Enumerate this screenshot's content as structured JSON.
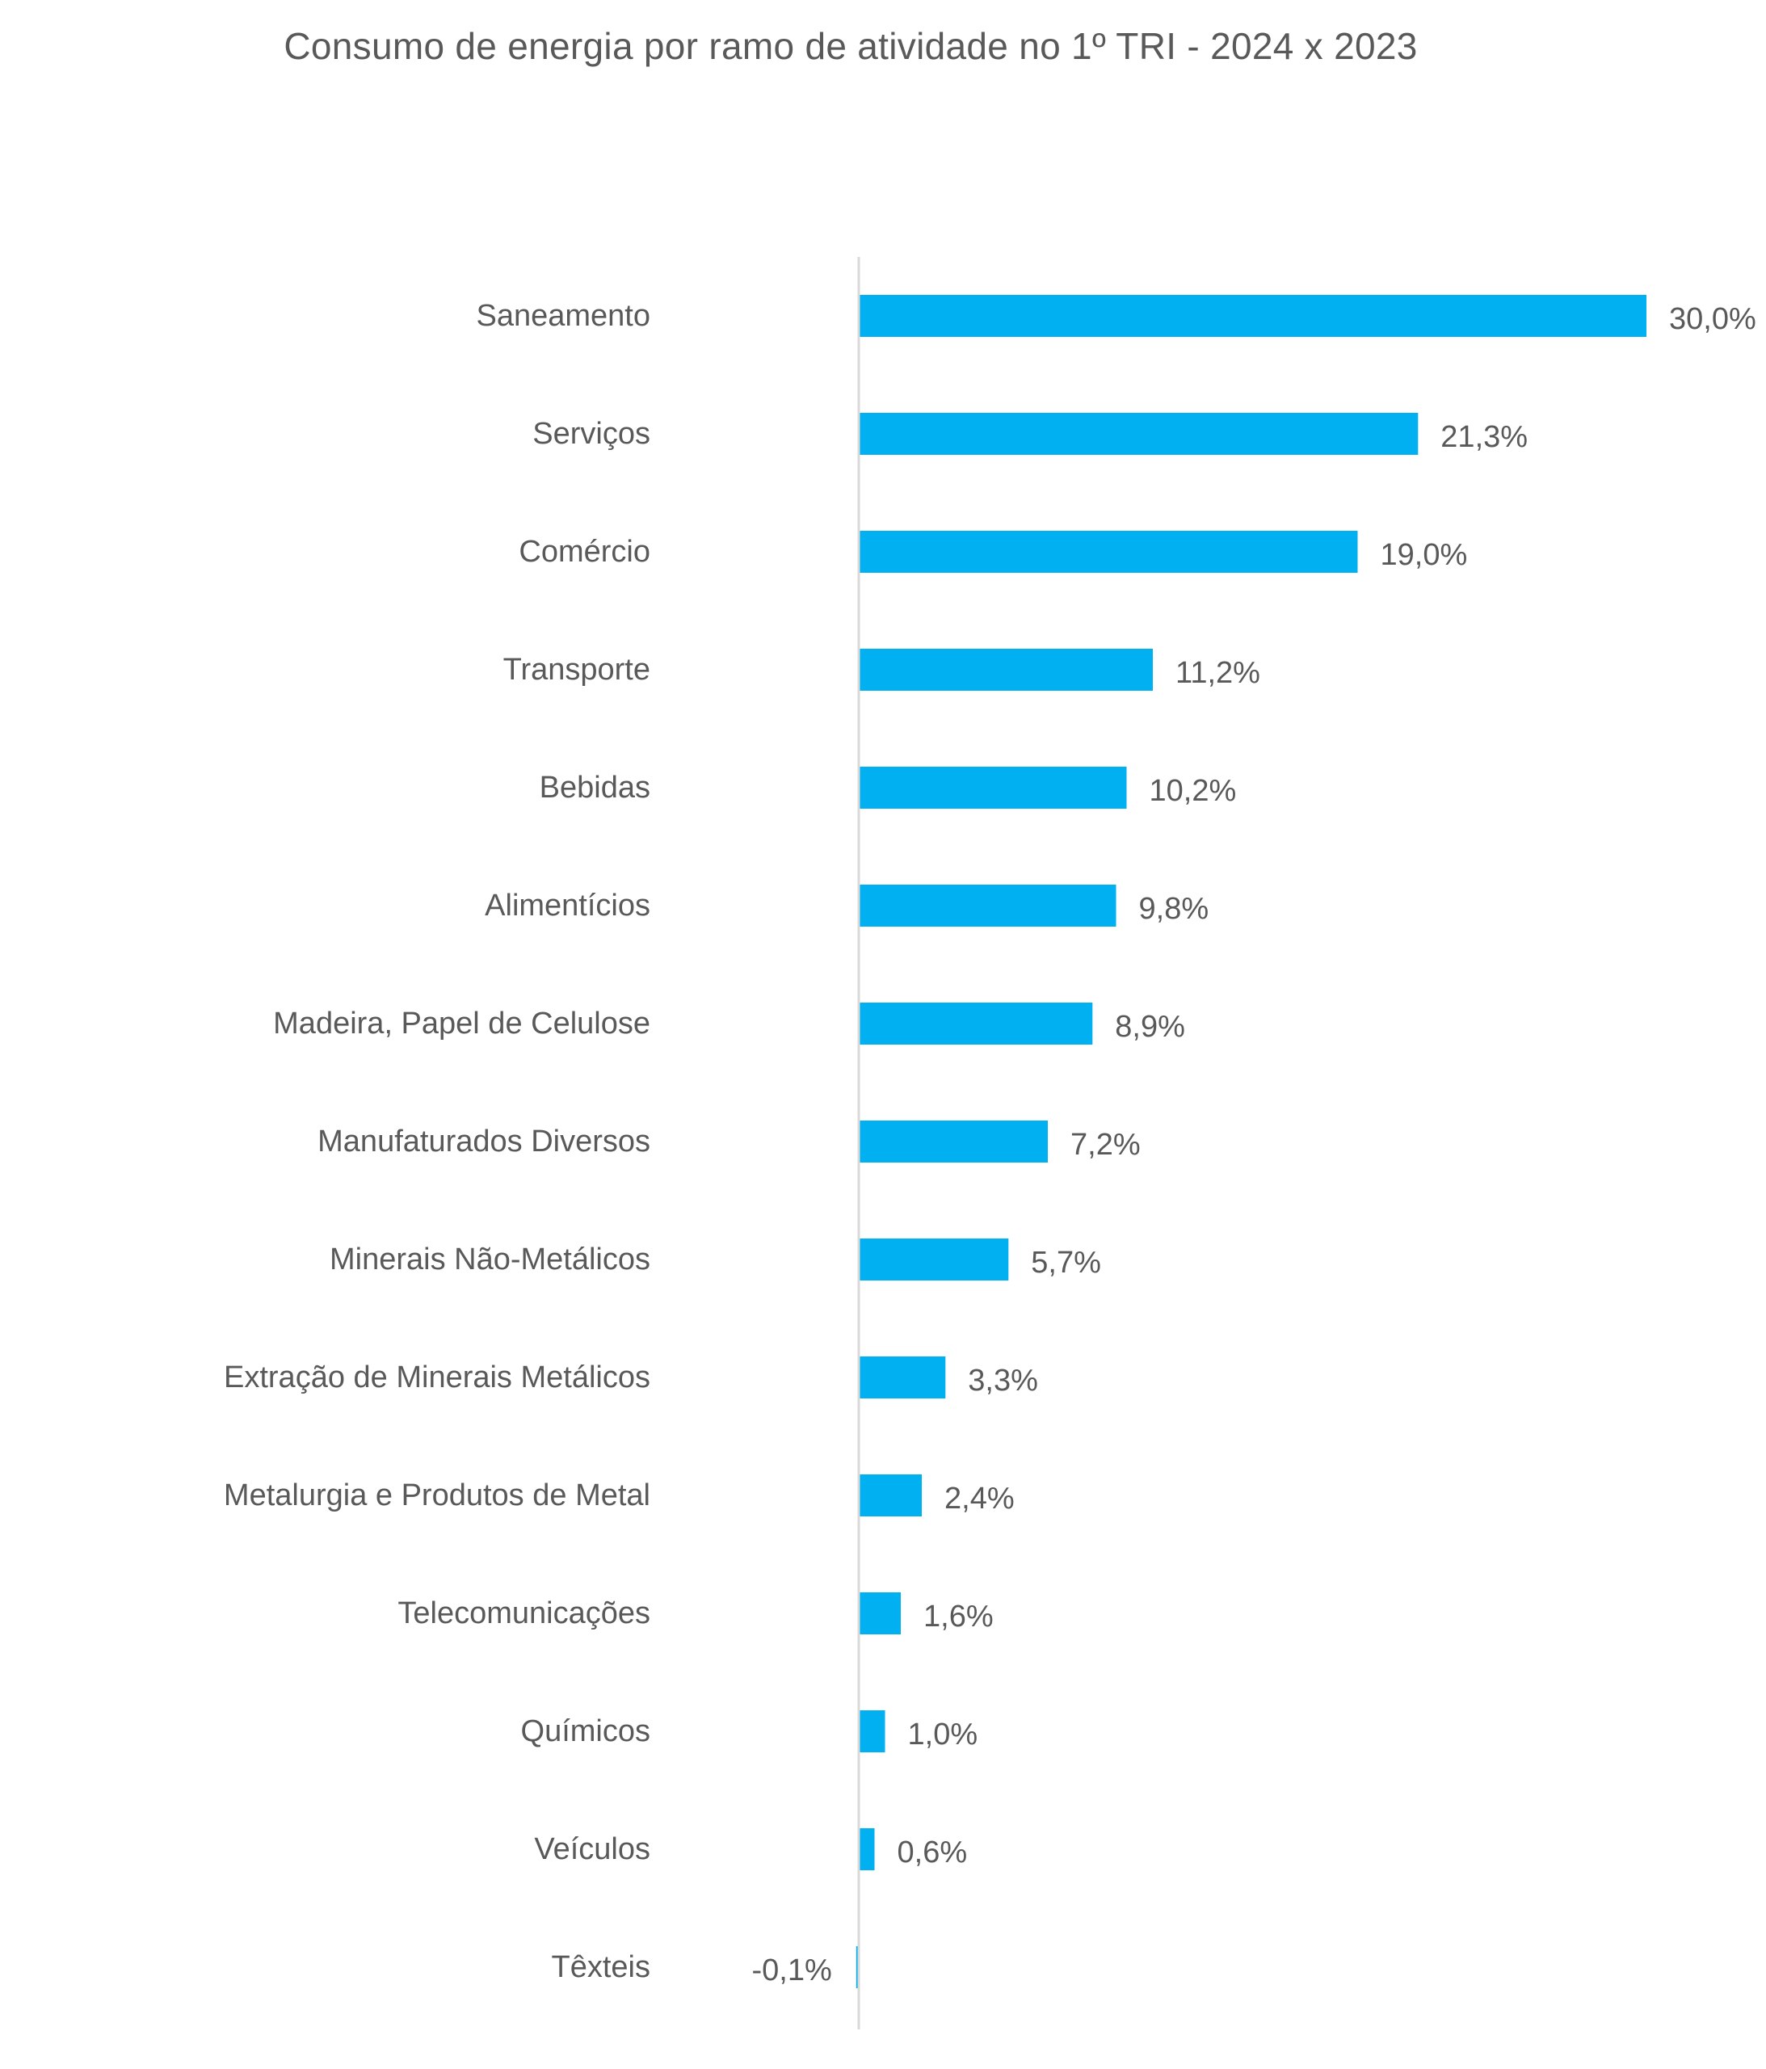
{
  "chart_data": {
    "type": "bar",
    "orientation": "horizontal",
    "title": "Consumo de energia por ramo de atividade no 1º TRI - 2024 x 2023",
    "categories": [
      "Saneamento",
      "Serviços",
      "Comércio",
      "Transporte",
      "Bebidas",
      "Alimentícios",
      "Madeira, Papel de Celulose",
      "Manufaturados Diversos",
      "Minerais Não-Metálicos",
      "Extração de Minerais Metálicos",
      "Metalurgia e Produtos de Metal",
      "Telecomunicações",
      "Químicos",
      "Veículos",
      "Têxteis"
    ],
    "values": [
      30.0,
      21.3,
      19.0,
      11.2,
      10.2,
      9.8,
      8.9,
      7.2,
      5.7,
      3.3,
      2.4,
      1.6,
      1.0,
      0.6,
      -0.1
    ],
    "value_labels": [
      "30,0%",
      "21,3%",
      "19,0%",
      "11,2%",
      "10,2%",
      "9,8%",
      "8,9%",
      "7,2%",
      "5,7%",
      "3,3%",
      "2,4%",
      "1,6%",
      "1,0%",
      "0,6%",
      "-0,1%"
    ],
    "unit": "%",
    "xlabel": "",
    "ylabel": "",
    "xlim": [
      -0.1,
      30.0
    ],
    "grid": false,
    "legend": "none",
    "bar_color": "#00B0F0",
    "axis_color": "#D9D9D9",
    "text_color": "#595959"
  }
}
